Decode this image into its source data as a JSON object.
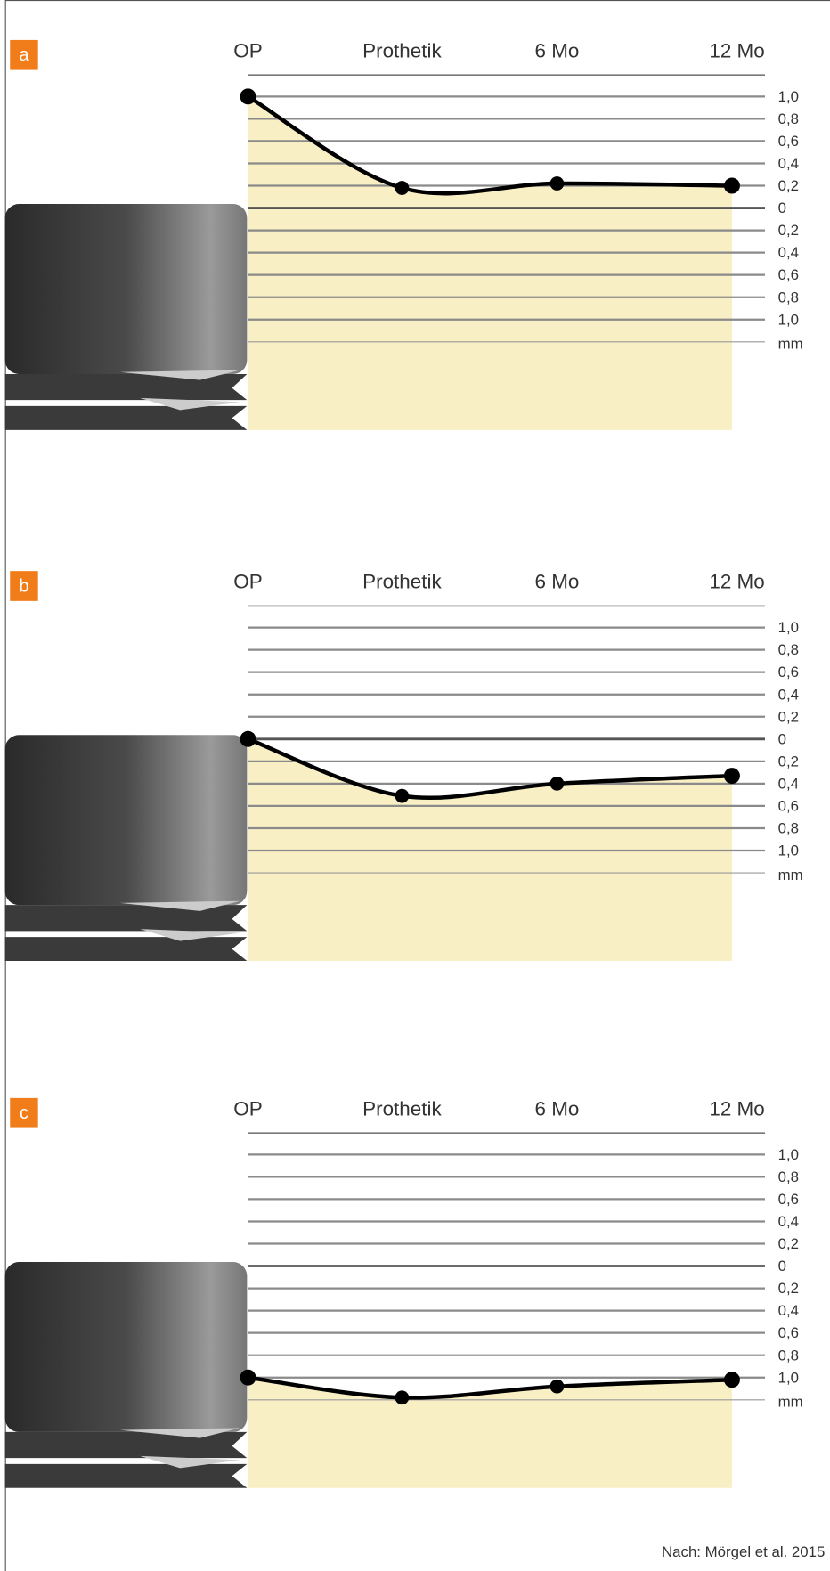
{
  "chart_data": [
    {
      "type": "line",
      "panel": "a",
      "categories": [
        "OP",
        "Prothetik",
        "6 Mo",
        "12 Mo"
      ],
      "series": [
        {
          "color": "#000000",
          "values": [
            1.0,
            0.18,
            0.22,
            0.2
          ]
        }
      ],
      "fill_color": "#f9efc4",
      "ylim": [
        -1.0,
        1.0
      ],
      "y_label": "mm",
      "yticks": [
        {
          "value": 1.0,
          "label": "1,0"
        },
        {
          "value": 0.8,
          "label": "0,8"
        },
        {
          "value": 0.6,
          "label": "0,6"
        },
        {
          "value": 0.4,
          "label": "0,4"
        },
        {
          "value": 0.2,
          "label": "0,2"
        },
        0,
        {
          "value": -0.2,
          "label": "0,2"
        },
        {
          "value": -0.4,
          "label": "0,4"
        },
        {
          "value": -0.6,
          "label": "0,6"
        },
        {
          "value": -0.8,
          "label": "0,8"
        },
        {
          "value": -1.0,
          "label": "1,0"
        }
      ]
    },
    {
      "type": "line",
      "panel": "b",
      "categories": [
        "OP",
        "Prothetik",
        "6 Mo",
        "12 Mo"
      ],
      "series": [
        {
          "color": "#000000",
          "values": [
            0,
            -0.51,
            -0.4,
            -0.33
          ]
        }
      ],
      "fill_color": "#f9efc4",
      "ylim": [
        -1.0,
        1.0
      ],
      "y_label": "mm",
      "yticks": [
        {
          "value": 1.0,
          "label": "1,0"
        },
        {
          "value": 0.8,
          "label": "0,8"
        },
        {
          "value": 0.6,
          "label": "0,6"
        },
        {
          "value": 0.4,
          "label": "0,4"
        },
        {
          "value": 0.2,
          "label": "0,2"
        },
        0,
        {
          "value": -0.2,
          "label": "0,2"
        },
        {
          "value": -0.4,
          "label": "0,4"
        },
        {
          "value": -0.6,
          "label": "0,6"
        },
        {
          "value": -0.8,
          "label": "0,8"
        },
        {
          "value": -1.0,
          "label": "1,0"
        }
      ]
    },
    {
      "type": "line",
      "panel": "c",
      "categories": [
        "OP",
        "Prothetik",
        "6 Mo",
        "12 Mo"
      ],
      "series": [
        {
          "color": "#000000",
          "values": [
            -1.0,
            -1.18,
            -1.08,
            -1.02
          ]
        }
      ],
      "fill_color": "#f9efc4",
      "ylim": [
        -1.0,
        1.0
      ],
      "y_label": "mm",
      "yticks": [
        {
          "value": 1.0,
          "label": "1,0"
        },
        {
          "value": 0.8,
          "label": "0,8"
        },
        {
          "value": 0.6,
          "label": "0,6"
        },
        {
          "value": 0.4,
          "label": "0,4"
        },
        {
          "value": 0.2,
          "label": "0,2"
        },
        0,
        {
          "value": -0.2,
          "label": "0,2"
        },
        {
          "value": -0.4,
          "label": "0,4"
        },
        {
          "value": -0.6,
          "label": "0,6"
        },
        {
          "value": -0.8,
          "label": "0,8"
        },
        {
          "value": -1.0,
          "label": "1,0"
        }
      ]
    }
  ],
  "source": "Nach: Mörgel et al. 2015"
}
